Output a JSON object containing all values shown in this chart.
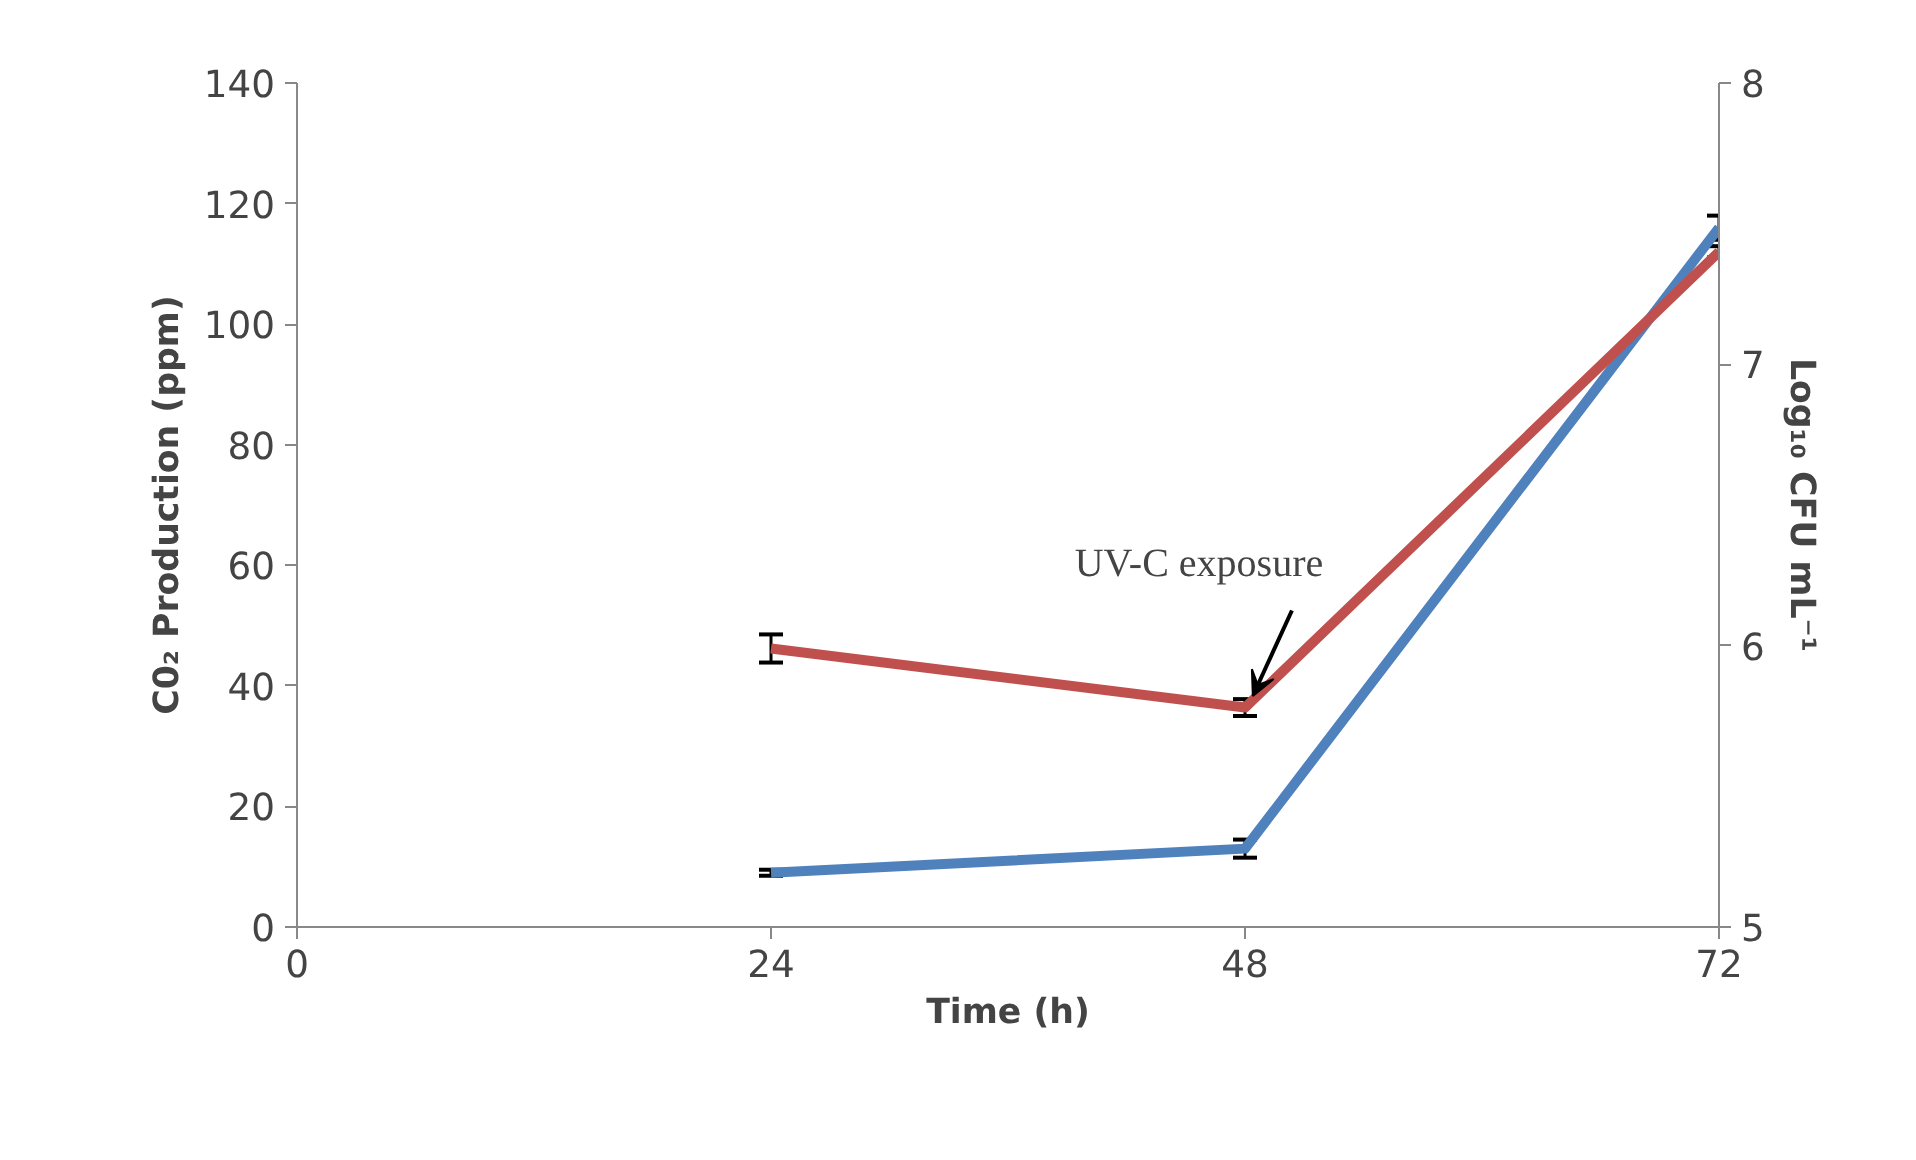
{
  "chart_data": {
    "type": "line",
    "xlabel": "Time (h)",
    "ylabel": "C0₂ Production (ppm)",
    "y2label": "Log₁₀ CFU mL⁻¹",
    "x": [
      24,
      48,
      72
    ],
    "xlim": [
      0,
      72
    ],
    "xticks": [
      0,
      24,
      48,
      72
    ],
    "ylim": [
      0,
      140
    ],
    "yticks": [
      0,
      20,
      40,
      60,
      80,
      100,
      120,
      140
    ],
    "y2lim": [
      5,
      8
    ],
    "y2ticks": [
      5,
      6,
      7,
      8
    ],
    "series": [
      {
        "color": "#4f81bd",
        "values": [
          9,
          13,
          116
        ],
        "errors": [
          0.5,
          1.5,
          2
        ]
      },
      {
        "color": "#c0504d",
        "values": [
          5.99,
          5.78,
          7.4
        ],
        "errors": [
          0.05,
          0.03,
          0.02
        ],
        "axis": "y2"
      }
    ],
    "annotations": [
      {
        "text": "UV-C exposure",
        "x": 48,
        "y": 36.4
      }
    ],
    "grid": false,
    "marker": "none",
    "line_style": "solid"
  }
}
